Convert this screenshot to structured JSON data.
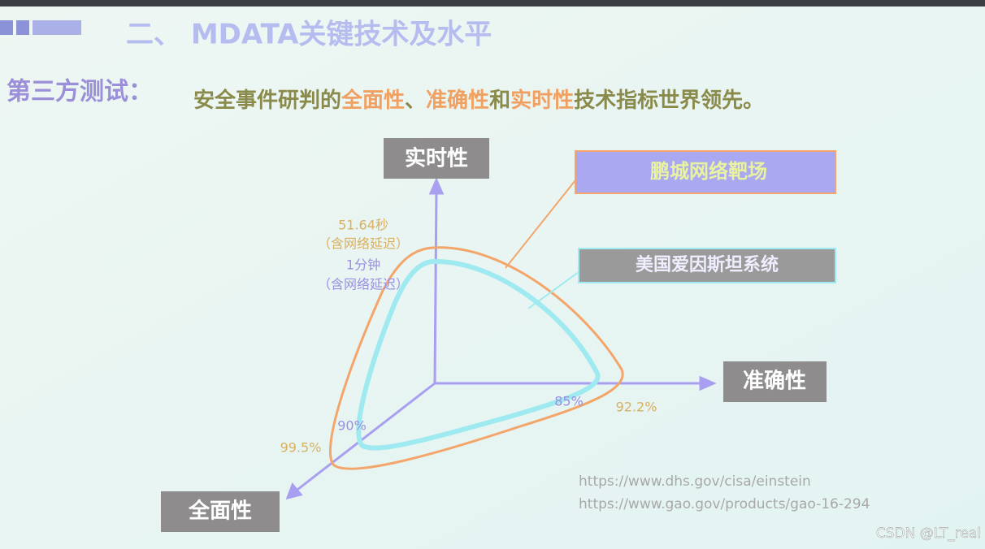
{
  "header": {
    "title": "二、 MDATA关键技术及水平"
  },
  "subtitle": {
    "lead": "第三方测试：",
    "parts": [
      "安全事件研判的",
      "全面性",
      "、",
      "准确性",
      "和",
      "实时性",
      "技术指标世界领先。"
    ]
  },
  "axes": {
    "up": "实时性",
    "right": "准确性",
    "down": "全面性"
  },
  "legend": {
    "pengcheng": "鹏城网络靶场",
    "einstein": "美国爱因斯坦系统"
  },
  "annotations": {
    "time_pc": "51.64秒",
    "time_pc_note": "（含网络延迟）",
    "time_us": "1分钟",
    "time_us_note": "（含网络延迟）",
    "acc_us": "85%",
    "acc_pc": "92.2%",
    "cov_us": "90%",
    "cov_pc": "99.5%"
  },
  "sources": [
    "https://www.dhs.gov/cisa/einstein",
    "https://www.gao.gov/products/gao-16-294"
  ],
  "watermark": "CSDN @LT_real"
}
